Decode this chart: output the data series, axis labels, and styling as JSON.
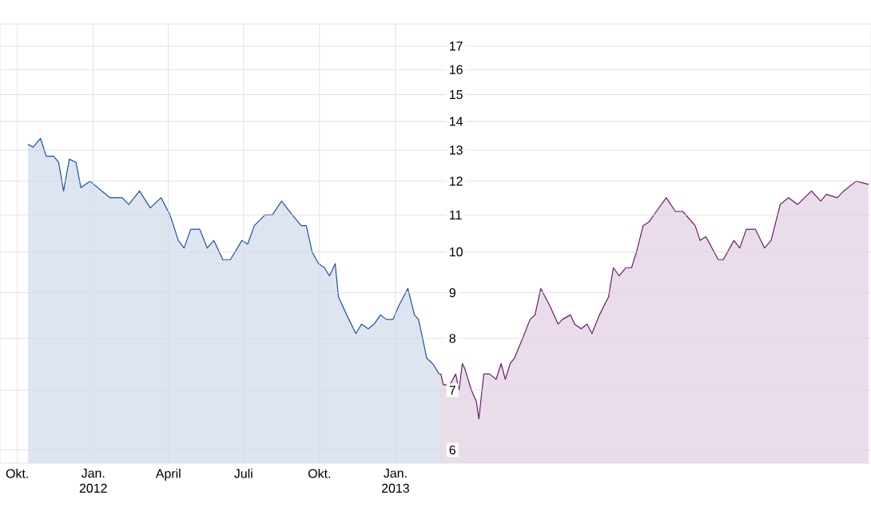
{
  "chart_data": {
    "type": "area",
    "log": "y",
    "grid": true,
    "xlim": [
      "2011-09-10",
      "2014-07-31"
    ],
    "ylim": [
      5.8,
      18
    ],
    "yticks": [
      6,
      7,
      8,
      9,
      10,
      11,
      12,
      13,
      14,
      15,
      16,
      17
    ],
    "xticks": [
      {
        "value": "2011-10-01",
        "label": "Okt."
      },
      {
        "value": "2012-01-01",
        "label": "Jan. 2012"
      },
      {
        "value": "2012-04-01",
        "label": "April"
      },
      {
        "value": "2012-07-01",
        "label": "Juli"
      },
      {
        "value": "2012-10-01",
        "label": "Okt."
      },
      {
        "value": "2013-01-01",
        "label": "Jan. 2013"
      }
    ],
    "series": [
      {
        "color": "#1f4fa0",
        "x": [
          "2011-10-14",
          "2011-10-20",
          "2011-10-29",
          "2011-11-05",
          "2011-11-14",
          "2011-11-20",
          "2011-11-26",
          "2011-12-03",
          "2011-12-11",
          "2011-12-17",
          "2011-12-28",
          "2012-01-21",
          "2012-02-05",
          "2012-02-13",
          "2012-02-26",
          "2012-03-10",
          "2012-03-23",
          "2012-04-03",
          "2012-04-13",
          "2012-04-20",
          "2012-04-28",
          "2012-05-09",
          "2012-05-18",
          "2012-05-26",
          "2012-06-06",
          "2012-06-15",
          "2012-06-29",
          "2012-07-06",
          "2012-07-14",
          "2012-07-27",
          "2012-08-05",
          "2012-08-16",
          "2012-08-29",
          "2012-09-09",
          "2012-09-15",
          "2012-09-22",
          "2012-09-30",
          "2012-10-07",
          "2012-10-13",
          "2012-10-20",
          "2012-10-24",
          "2012-11-03",
          "2012-11-14",
          "2012-11-21",
          "2012-11-29",
          "2012-12-06",
          "2012-12-14",
          "2012-12-21",
          "2012-12-29",
          "2013-01-05",
          "2013-01-16",
          "2013-01-24",
          "2013-01-29",
          "2013-02-08",
          "2013-02-15",
          "2013-02-23"
        ],
        "values": [
          13.2,
          13.1,
          13.4,
          12.8,
          12.8,
          12.6,
          11.7,
          12.7,
          12.6,
          11.8,
          12.0,
          11.5,
          11.5,
          11.3,
          11.7,
          11.2,
          11.5,
          11.0,
          10.3,
          10.1,
          10.6,
          10.6,
          10.1,
          10.3,
          9.8,
          9.8,
          10.3,
          10.2,
          10.7,
          11.0,
          11.0,
          11.4,
          11.0,
          10.7,
          10.7,
          10.0,
          9.7,
          9.6,
          9.4,
          9.7,
          8.9,
          8.5,
          8.1,
          8.3,
          8.2,
          8.3,
          8.5,
          8.4,
          8.4,
          8.7,
          9.1,
          8.5,
          8.4,
          7.6,
          7.5,
          7.3
        ]
      },
      {
        "color": "#6b1a6b",
        "x": [
          "2013-02-23",
          "2013-02-25",
          "2013-02-28",
          "2013-03-08",
          "2013-03-15",
          "2013-03-19",
          "2013-03-23",
          "2013-03-26",
          "2013-04-03",
          "2013-04-09",
          "2013-04-12",
          "2013-04-18",
          "2013-04-25",
          "2013-05-03",
          "2013-05-09",
          "2013-05-14",
          "2013-05-20",
          "2013-05-25",
          "2013-06-04",
          "2013-06-13",
          "2013-06-19",
          "2013-06-26",
          "2013-07-07",
          "2013-07-17",
          "2013-07-22",
          "2013-08-01",
          "2013-08-06",
          "2013-08-14",
          "2013-08-21",
          "2013-08-27",
          "2013-09-05",
          "2013-09-16",
          "2013-09-22",
          "2013-09-29",
          "2013-10-07",
          "2013-10-14",
          "2013-10-20",
          "2013-10-28",
          "2013-11-04",
          "2013-11-13",
          "2013-11-25",
          "2013-12-06",
          "2013-12-15",
          "2013-12-30",
          "2014-01-05",
          "2014-01-12",
          "2014-01-27",
          "2014-02-02",
          "2014-02-15",
          "2014-02-22",
          "2014-03-02",
          "2014-03-13",
          "2014-03-24",
          "2014-04-01",
          "2014-04-12",
          "2014-04-22",
          "2014-05-03",
          "2014-05-20",
          "2014-05-31",
          "2014-06-07",
          "2014-06-20",
          "2014-06-28",
          "2014-07-13",
          "2014-07-28"
        ],
        "values": [
          7.3,
          7.3,
          7.1,
          7.1,
          7.3,
          7.0,
          7.5,
          7.4,
          7.0,
          6.8,
          6.5,
          7.3,
          7.3,
          7.2,
          7.5,
          7.2,
          7.5,
          7.6,
          8.0,
          8.4,
          8.5,
          9.1,
          8.7,
          8.3,
          8.4,
          8.5,
          8.3,
          8.2,
          8.3,
          8.1,
          8.5,
          8.9,
          9.6,
          9.4,
          9.6,
          9.6,
          10.0,
          10.7,
          10.8,
          11.1,
          11.5,
          11.1,
          11.1,
          10.7,
          10.3,
          10.4,
          9.8,
          9.8,
          10.3,
          10.1,
          10.6,
          10.6,
          10.1,
          10.3,
          11.3,
          11.5,
          11.3,
          11.7,
          11.4,
          11.6,
          11.5,
          11.7,
          12.0,
          11.9
        ]
      }
    ]
  }
}
